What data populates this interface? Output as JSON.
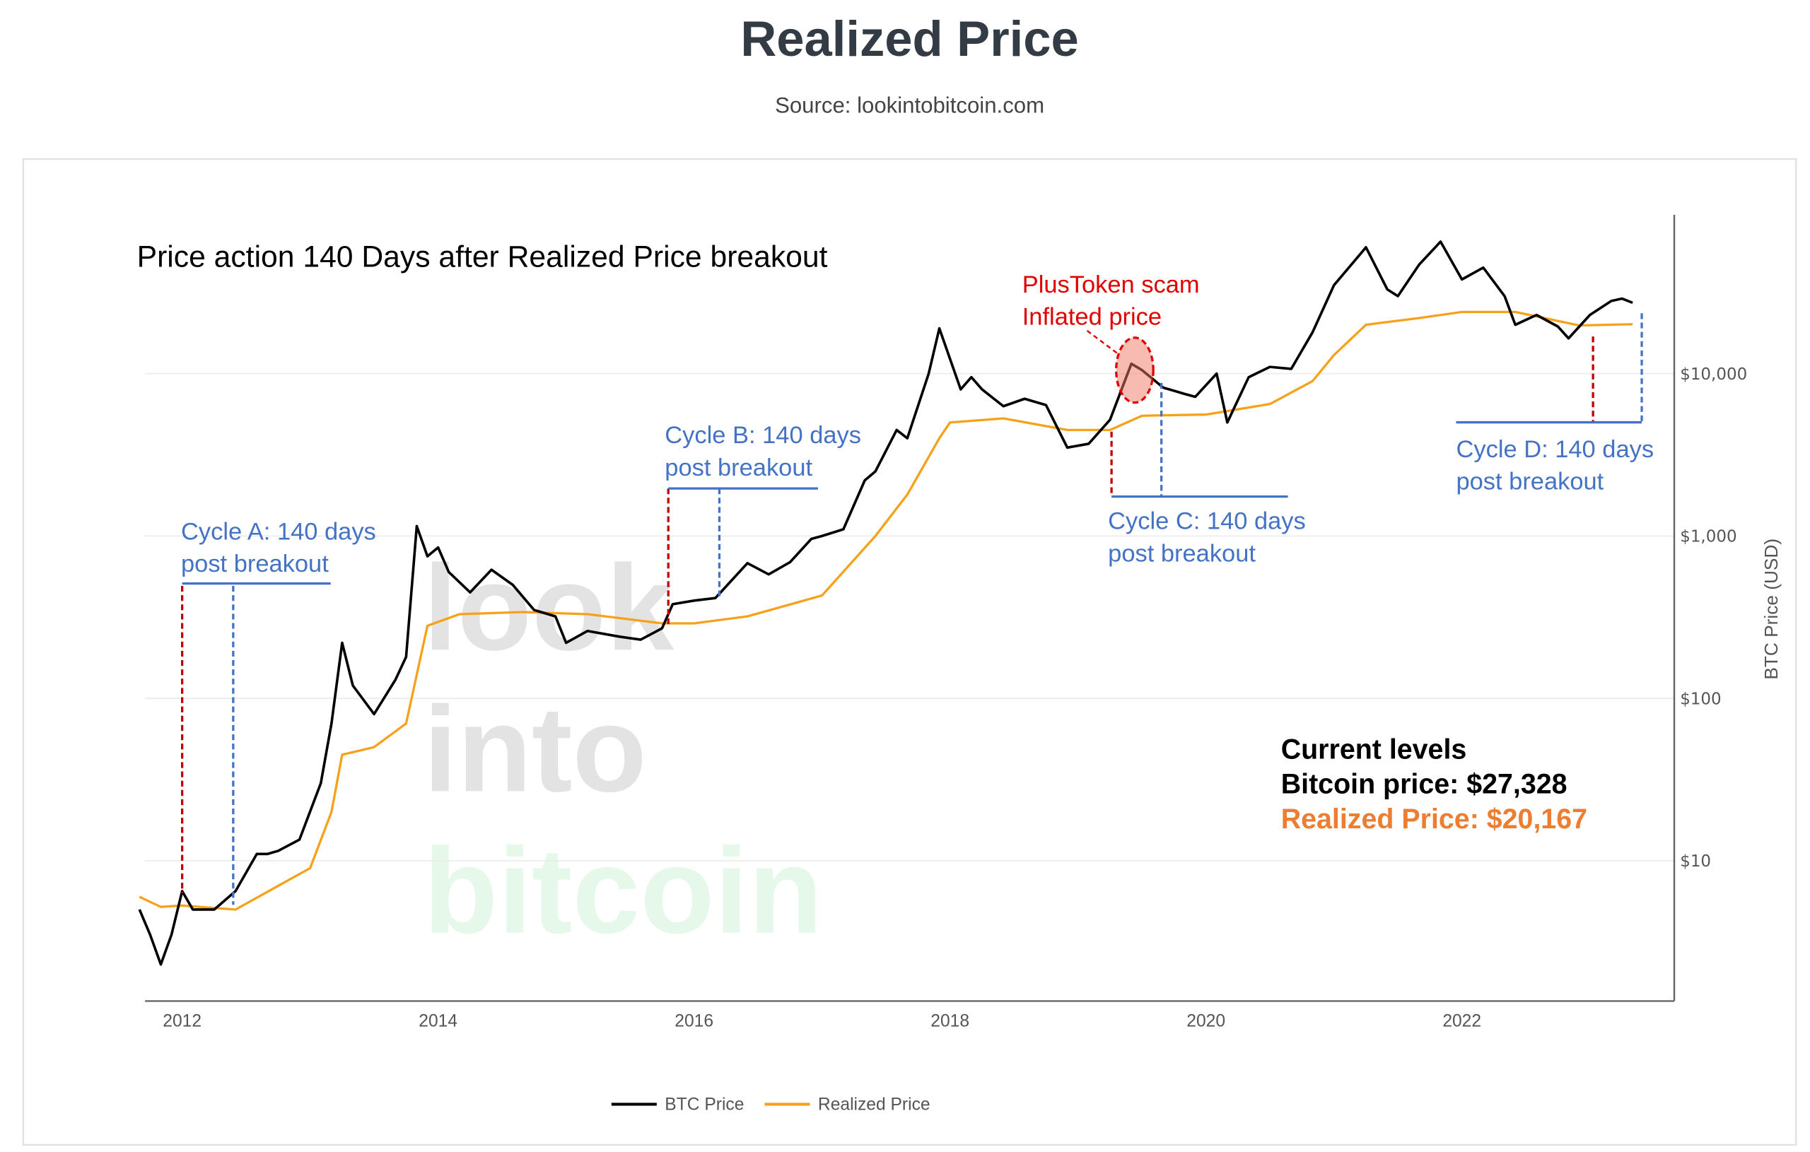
{
  "header": {
    "title": "Realized Price",
    "subtitle": "Source: lookintobitcoin.com"
  },
  "watermark": [
    "look",
    "into",
    "bitcoin"
  ],
  "colors": {
    "btc": "#000000",
    "realized": "#f7a11a",
    "breakout_marker": "#c00000",
    "cycle_marker": "#4472c4",
    "annotation_red": "#e00000",
    "realized_text": "#ed7d31"
  },
  "chart_data": {
    "type": "line",
    "title": "Price action 140 Days after Realized Price breakout",
    "ylabel": "BTC Price (USD)",
    "yscale": "log",
    "ylim": [
      1.37,
      94000
    ],
    "xlim": [
      "2011-09",
      "2023-07"
    ],
    "grid": true,
    "legend_position": "bottom",
    "x_ticks": [
      "2012",
      "2014",
      "2016",
      "2018",
      "2020",
      "2022"
    ],
    "y_ticks": [
      {
        "value": 10,
        "label": "$10"
      },
      {
        "value": 100,
        "label": "$100"
      },
      {
        "value": 1000,
        "label": "$1,000"
      },
      {
        "value": 10000,
        "label": "$10,000"
      }
    ],
    "series": [
      {
        "name": "BTC Price",
        "color": "#000000",
        "points": [
          [
            "2011-09",
            5
          ],
          [
            "2011-10",
            3.5
          ],
          [
            "2011-11",
            2.3
          ],
          [
            "2011-12",
            3.5
          ],
          [
            "2012-01",
            6.5
          ],
          [
            "2012-02",
            5
          ],
          [
            "2012-03",
            5
          ],
          [
            "2012-04",
            5
          ],
          [
            "2012-06",
            6.5
          ],
          [
            "2012-08",
            11
          ],
          [
            "2012-09",
            11
          ],
          [
            "2012-10",
            11.5
          ],
          [
            "2012-12",
            13.5
          ],
          [
            "2013-02",
            30
          ],
          [
            "2013-03",
            70
          ],
          [
            "2013-04",
            220
          ],
          [
            "2013-05",
            120
          ],
          [
            "2013-07",
            80
          ],
          [
            "2013-09",
            130
          ],
          [
            "2013-10",
            180
          ],
          [
            "2013-11",
            1150
          ],
          [
            "2013-12",
            750
          ],
          [
            "2014-01",
            850
          ],
          [
            "2014-02",
            600
          ],
          [
            "2014-04",
            450
          ],
          [
            "2014-06",
            620
          ],
          [
            "2014-08",
            500
          ],
          [
            "2014-10",
            350
          ],
          [
            "2014-12",
            320
          ],
          [
            "2015-01",
            220
          ],
          [
            "2015-03",
            260
          ],
          [
            "2015-06",
            240
          ],
          [
            "2015-08",
            230
          ],
          [
            "2015-10",
            270
          ],
          [
            "2015-11",
            380
          ],
          [
            "2016-01",
            400
          ],
          [
            "2016-03",
            415
          ],
          [
            "2016-06",
            680
          ],
          [
            "2016-08",
            580
          ],
          [
            "2016-10",
            690
          ],
          [
            "2016-12",
            960
          ],
          [
            "2017-01",
            1000
          ],
          [
            "2017-03",
            1100
          ],
          [
            "2017-05",
            2200
          ],
          [
            "2017-06",
            2500
          ],
          [
            "2017-08",
            4500
          ],
          [
            "2017-09",
            4000
          ],
          [
            "2017-11",
            10000
          ],
          [
            "2017-12",
            19000
          ],
          [
            "2018-02",
            8000
          ],
          [
            "2018-03",
            9500
          ],
          [
            "2018-04",
            8000
          ],
          [
            "2018-06",
            6300
          ],
          [
            "2018-08",
            7000
          ],
          [
            "2018-10",
            6400
          ],
          [
            "2018-12",
            3500
          ],
          [
            "2019-02",
            3700
          ],
          [
            "2019-04",
            5200
          ],
          [
            "2019-06",
            11500
          ],
          [
            "2019-07",
            10500
          ],
          [
            "2019-09",
            8200
          ],
          [
            "2019-11",
            7500
          ],
          [
            "2019-12",
            7200
          ],
          [
            "2020-02",
            10000
          ],
          [
            "2020-03",
            5000
          ],
          [
            "2020-05",
            9500
          ],
          [
            "2020-07",
            11000
          ],
          [
            "2020-09",
            10700
          ],
          [
            "2020-11",
            18000
          ],
          [
            "2021-01",
            35000
          ],
          [
            "2021-04",
            60000
          ],
          [
            "2021-06",
            33000
          ],
          [
            "2021-07",
            30000
          ],
          [
            "2021-09",
            47000
          ],
          [
            "2021-11",
            65000
          ],
          [
            "2022-01",
            38000
          ],
          [
            "2022-03",
            45000
          ],
          [
            "2022-05",
            30000
          ],
          [
            "2022-06",
            20000
          ],
          [
            "2022-08",
            23000
          ],
          [
            "2022-10",
            19500
          ],
          [
            "2022-11",
            16500
          ],
          [
            "2023-01",
            23000
          ],
          [
            "2023-03",
            28000
          ],
          [
            "2023-04",
            29000
          ],
          [
            "2023-05",
            27328
          ]
        ]
      },
      {
        "name": "Realized Price",
        "color": "#f7a11a",
        "points": [
          [
            "2011-09",
            6
          ],
          [
            "2011-11",
            5.2
          ],
          [
            "2012-01",
            5.3
          ],
          [
            "2012-06",
            5
          ],
          [
            "2012-10",
            7
          ],
          [
            "2013-01",
            9
          ],
          [
            "2013-03",
            20
          ],
          [
            "2013-04",
            45
          ],
          [
            "2013-07",
            50
          ],
          [
            "2013-10",
            70
          ],
          [
            "2013-12",
            280
          ],
          [
            "2014-03",
            330
          ],
          [
            "2014-09",
            340
          ],
          [
            "2015-03",
            330
          ],
          [
            "2015-10",
            290
          ],
          [
            "2016-01",
            290
          ],
          [
            "2016-06",
            320
          ],
          [
            "2017-01",
            430
          ],
          [
            "2017-06",
            1000
          ],
          [
            "2017-09",
            1800
          ],
          [
            "2017-12",
            4000
          ],
          [
            "2018-01",
            5000
          ],
          [
            "2018-06",
            5300
          ],
          [
            "2018-12",
            4500
          ],
          [
            "2019-04",
            4500
          ],
          [
            "2019-07",
            5500
          ],
          [
            "2020-01",
            5600
          ],
          [
            "2020-07",
            6500
          ],
          [
            "2020-11",
            9000
          ],
          [
            "2021-01",
            13000
          ],
          [
            "2021-04",
            20000
          ],
          [
            "2021-09",
            22000
          ],
          [
            "2022-01",
            24000
          ],
          [
            "2022-06",
            24000
          ],
          [
            "2022-12",
            19800
          ],
          [
            "2023-05",
            20167
          ]
        ]
      }
    ],
    "annotations": {
      "cycle_a": [
        "Cycle A: 140 days",
        "post breakout"
      ],
      "cycle_b": [
        "Cycle B: 140 days",
        "post breakout"
      ],
      "cycle_c": [
        "Cycle C: 140 days",
        "post breakout"
      ],
      "cycle_d": [
        "Cycle D: 140 days",
        "post breakout"
      ],
      "plustoken": [
        "PlusToken scam",
        "Inflated price"
      ],
      "current_title": "Current levels",
      "current_btc": "Bitcoin price: $27,328",
      "current_realized": "Realized Price: $20,167"
    }
  }
}
